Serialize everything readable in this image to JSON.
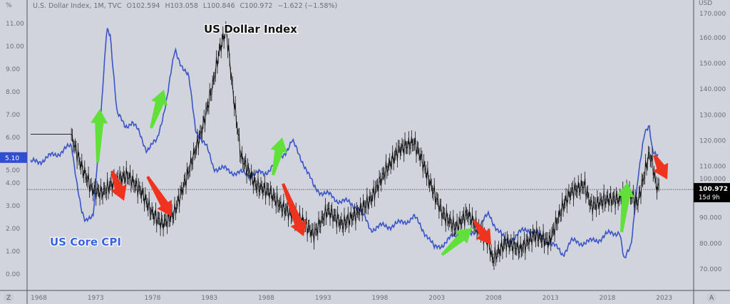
{
  "header": {
    "symbol": "U.S. Dollar Index, 1M, TVC",
    "open": "O102.594",
    "high": "H103.058",
    "low": "L100.846",
    "close": "C100.972",
    "change": "−1.622 (−1.58%)"
  },
  "left_axis_unit": "%",
  "right_axis_unit": "USD",
  "bottom_left_button": "Z",
  "bottom_right_button": "A",
  "colors": {
    "background": "#d1d4dc",
    "cpi": "#3a55c8",
    "dxy": "#111111",
    "up_arrow": "#62e03a",
    "down_arrow": "#f0331f"
  },
  "chart_data": {
    "type": "line",
    "title": "US Dollar Index vs US Core CPI",
    "xlabel": "",
    "ylabel_left": "%",
    "ylabel_right": "USD",
    "x_ticks": [
      "1968",
      "1973",
      "1978",
      "1983",
      "1988",
      "1993",
      "1998",
      "2003",
      "2008",
      "2013",
      "2018",
      "2023"
    ],
    "left_ticks": [
      "0.00",
      "1.00",
      "2.00",
      "3.00",
      "4.00",
      "5.00",
      "6.00",
      "7.00",
      "8.00",
      "9.00",
      "10.00",
      "11.00"
    ],
    "right_ticks": [
      "70.000",
      "80.000",
      "90.000",
      "100.000",
      "110.000",
      "120.000",
      "130.000",
      "140.000",
      "150.000",
      "160.000",
      "170.000"
    ],
    "xlim": [
      1968,
      2026
    ],
    "ylim_left": [
      -0.5,
      11.5
    ],
    "ylim_right": [
      60,
      172
    ],
    "annotations": {
      "dxy_label": "US Dollar Index",
      "cpi_label": "US Core CPI"
    },
    "last_cpi_label": "5.10",
    "last_dxy_label": "100.972",
    "last_dxy_countdown": "15d 9h",
    "series": [
      {
        "name": "US Core CPI",
        "axis": "left",
        "x": [
          1968.0,
          1969.5,
          1971.6,
          1972.5,
          1972.8,
          1973.5,
          1974.2,
          1974.7,
          1975.0,
          1975.6,
          1976.3,
          1976.9,
          1977.5,
          1978.2,
          1979.1,
          1980.0,
          1980.7,
          1981.3,
          1981.9,
          1982.5,
          1983.5,
          1984.1,
          1986.6,
          1988.5,
          1989.8,
          1991.0,
          1992.0,
          1992.9,
          1994.8,
          1996.7,
          1997.9,
          2000.4,
          2001.7,
          2002.9,
          2003.5,
          2005.4,
          2006.7,
          2008.3,
          2009.8,
          2011.7,
          2013.6,
          2014.8,
          2015.5,
          2017.3,
          2018.6,
          2019.8,
          2020.2,
          2020.8,
          2021.4,
          2022.0,
          2022.4,
          2022.7,
          2023.2
        ],
        "y": [
          4.85,
          5.1,
          5.6,
          2.7,
          2.2,
          2.7,
          7.0,
          10.8,
          10.6,
          7.0,
          6.5,
          6.7,
          6.2,
          5.5,
          5.8,
          7.8,
          9.8,
          9.2,
          8.6,
          6.4,
          5.5,
          4.7,
          4.4,
          4.4,
          5.0,
          5.8,
          4.9,
          3.8,
          3.3,
          3.0,
          2.0,
          2.2,
          2.5,
          1.7,
          1.1,
          1.7,
          1.7,
          2.6,
          1.4,
          2.0,
          1.4,
          0.9,
          1.4,
          1.4,
          1.7,
          1.9,
          0.5,
          1.3,
          4.2,
          6.1,
          6.6,
          5.5,
          5.1
        ]
      },
      {
        "name": "US Dollar Index",
        "axis": "right",
        "x": [
          1968.0,
          1971.5,
          1972.5,
          1973.4,
          1974.3,
          1975.3,
          1976.5,
          1977.8,
          1978.7,
          1979.6,
          1980.6,
          1981.8,
          1983.1,
          1984.0,
          1984.6,
          1985.2,
          1985.8,
          1986.5,
          1987.8,
          1989.0,
          1990.0,
          1990.9,
          1991.9,
          1992.9,
          1994.1,
          1995.4,
          1996.7,
          1997.9,
          1999.2,
          2000.4,
          2001.7,
          2002.3,
          2003.2,
          2004.2,
          2005.4,
          2006.4,
          2007.3,
          2008.3,
          2008.6,
          2009.8,
          2011.1,
          2012.3,
          2013.6,
          2014.8,
          2015.5,
          2016.7,
          2017.3,
          2018.6,
          2019.8,
          2020.5,
          2021.4,
          2022.4,
          2022.7,
          2023.0,
          2023.3
        ],
        "y": [
          122.5,
          122.5,
          109.6,
          101,
          99.6,
          103.8,
          106.5,
          99.6,
          91.6,
          87.4,
          91.6,
          106.8,
          124.8,
          141.4,
          155,
          163.6,
          138.6,
          113.7,
          102.7,
          100,
          94.5,
          91.6,
          88.8,
          83.3,
          93,
          87.4,
          91.6,
          97.1,
          108.2,
          116.5,
          119.3,
          113.7,
          102.7,
          91.6,
          86,
          91.6,
          86,
          80.5,
          73.6,
          80.5,
          77.7,
          83.3,
          80.5,
          94.4,
          99.9,
          102.7,
          94.4,
          97.1,
          97.1,
          99.9,
          95.8,
          115,
          110.9,
          102.7,
          100.97
        ]
      }
    ]
  }
}
